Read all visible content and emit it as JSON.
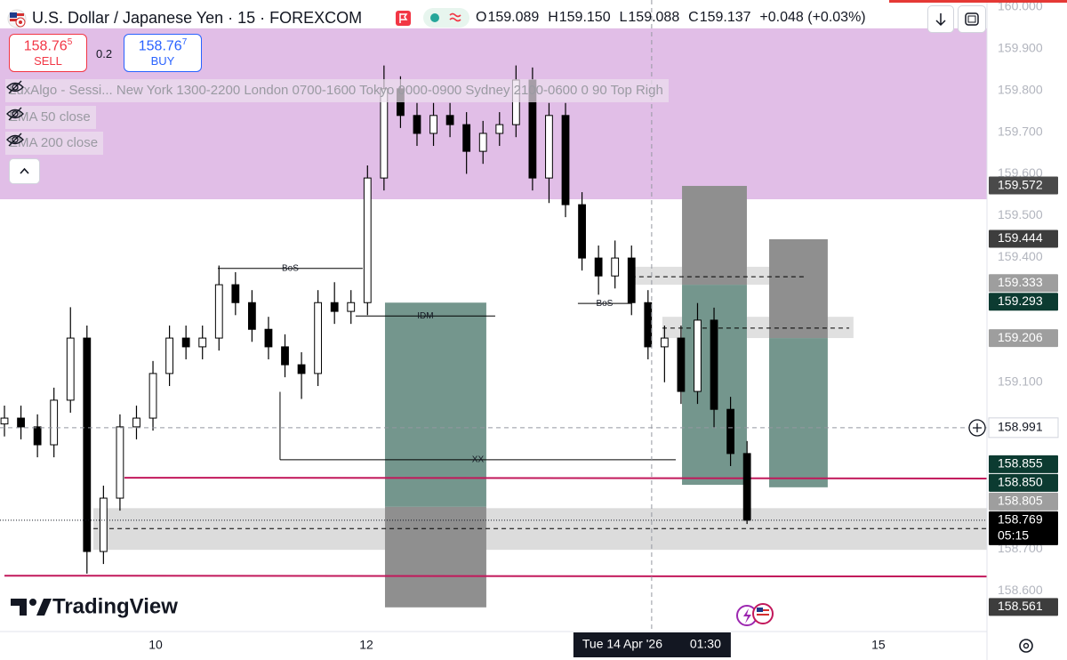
{
  "header": {
    "title": "U.S. Dollar / Japanese Yen · 15 · FOREXCOM",
    "ohlc": [
      [
        "O",
        "159.089"
      ],
      [
        "H",
        "159.150"
      ],
      [
        "L",
        "159.088"
      ],
      [
        "C",
        "159.137"
      ]
    ],
    "change": "+0.048 (+0.03%)"
  },
  "order_panel": {
    "sell": {
      "price": "158.76",
      "pip": "5",
      "label": "SELL"
    },
    "spread": "0.2",
    "buy": {
      "price": "158.76",
      "pip": "7",
      "label": "BUY"
    }
  },
  "indicators": [
    "LuxAlgo - Sessi...  New York 1300-2200 London 0700-1600 Tokyo 0000-0900 Sydney 2100-0600 0 90 Top Righ",
    "EMA 50 close",
    "EMA 200 close"
  ],
  "brand": "TradingView",
  "chart_data": {
    "type": "candlestick",
    "x": [
      0,
      1,
      2,
      3,
      4,
      5,
      6,
      7,
      8,
      9,
      10,
      11,
      12,
      13,
      14,
      15,
      16,
      17,
      18,
      19,
      20,
      21,
      22,
      23,
      24,
      25,
      26,
      27,
      28,
      29,
      30,
      31,
      32,
      33,
      34,
      35,
      36,
      37,
      38,
      39,
      40,
      41,
      42,
      43,
      44,
      45
    ],
    "open": [
      159.0,
      159.014,
      158.993,
      158.95,
      159.057,
      159.206,
      158.694,
      158.822,
      158.993,
      159.014,
      159.121,
      159.206,
      159.185,
      159.206,
      159.334,
      159.291,
      159.227,
      159.185,
      159.142,
      159.121,
      159.291,
      159.27,
      159.291,
      159.59,
      159.804,
      159.74,
      159.697,
      159.74,
      159.718,
      159.654,
      159.697,
      159.718,
      159.825,
      159.59,
      159.74,
      159.526,
      159.398,
      159.355,
      159.398,
      159.291,
      159.185,
      159.206,
      159.078,
      159.249,
      159.035,
      158.929
    ],
    "high": [
      159.044,
      159.044,
      159.023,
      159.087,
      159.28,
      159.236,
      158.852,
      159.023,
      159.044,
      159.151,
      159.236,
      159.236,
      159.236,
      159.38,
      159.364,
      159.321,
      159.257,
      159.215,
      159.172,
      159.321,
      159.34,
      159.321,
      159.62,
      159.86,
      159.834,
      159.77,
      159.77,
      159.77,
      159.748,
      159.727,
      159.748,
      159.86,
      159.855,
      159.77,
      159.77,
      159.556,
      159.428,
      159.44,
      159.428,
      159.321,
      159.236,
      159.236,
      159.29,
      159.279,
      159.065,
      158.959
    ],
    "low": [
      158.97,
      158.963,
      158.92,
      158.92,
      159.027,
      158.641,
      158.664,
      158.792,
      158.963,
      158.984,
      159.091,
      159.155,
      159.155,
      159.176,
      159.261,
      159.197,
      159.155,
      159.112,
      159.06,
      159.091,
      159.24,
      159.24,
      159.261,
      159.56,
      159.71,
      159.667,
      159.667,
      159.688,
      159.6,
      159.624,
      159.667,
      159.688,
      159.56,
      159.53,
      159.496,
      159.368,
      159.31,
      159.325,
      159.261,
      159.155,
      159.1,
      159.048,
      159.048,
      158.99,
      158.899,
      158.76
    ],
    "close": [
      159.014,
      158.993,
      158.95,
      159.057,
      159.206,
      158.694,
      158.822,
      158.993,
      159.014,
      159.121,
      159.206,
      159.185,
      159.206,
      159.334,
      159.291,
      159.227,
      159.185,
      159.142,
      159.121,
      159.291,
      159.27,
      159.291,
      159.59,
      159.804,
      159.74,
      159.697,
      159.74,
      159.718,
      159.654,
      159.697,
      159.718,
      159.825,
      159.59,
      159.74,
      159.526,
      159.398,
      159.355,
      159.398,
      159.291,
      159.185,
      159.206,
      159.078,
      159.249,
      159.035,
      158.929,
      158.769
    ],
    "up_color": "#ffffff",
    "down_color": "#000000",
    "wick_color": "#000000",
    "xlim": [
      -0.27,
      59.54
    ],
    "ylim": [
      158.502,
      160.017
    ],
    "xticks": [
      {
        "value": 9.16,
        "label": "10"
      },
      {
        "value": 21.93,
        "label": "12"
      },
      {
        "value": 52.96,
        "label": "15"
      }
    ],
    "yticks": [
      {
        "value": 160.0,
        "label": "160.000"
      },
      {
        "value": 159.9,
        "label": "159.900"
      },
      {
        "value": 159.8,
        "label": "159.800"
      },
      {
        "value": 159.7,
        "label": "159.700"
      },
      {
        "value": 159.6,
        "label": "159.600"
      },
      {
        "value": 159.5,
        "label": "159.500"
      },
      {
        "value": 159.4,
        "label": "159.400"
      },
      {
        "value": 159.3,
        "label": "159.300"
      },
      {
        "value": 159.2,
        "label": "159.200"
      },
      {
        "value": 159.1,
        "label": "159.100"
      },
      {
        "value": 159.0,
        "label": "159.000"
      },
      {
        "value": 158.9,
        "label": "158.900"
      },
      {
        "value": 158.8,
        "label": "158.800"
      },
      {
        "value": 158.7,
        "label": "158.700"
      },
      {
        "value": 158.6,
        "label": "158.600"
      }
    ],
    "session_band": {
      "ylo": 159.539,
      "yhi": 159.949,
      "color": "#e1bee7"
    },
    "zones": [
      {
        "x0": 5.39,
        "x1": 59.54,
        "ylo": 158.698,
        "yhi": 158.798,
        "color": "#dcdcdc"
      },
      {
        "x0": 37.82,
        "x1": 48.6,
        "ylo": 159.334,
        "yhi": 159.377,
        "color": "#e0e0e0"
      },
      {
        "x0": 39.87,
        "x1": 51.45,
        "ylo": 159.206,
        "yhi": 159.257,
        "color": "#e0e0e0"
      },
      {
        "x0": 23.06,
        "x1": 29.2,
        "ylo": 158.801,
        "yhi": 159.291,
        "color": "#74968d"
      },
      {
        "x0": 23.06,
        "x1": 29.2,
        "ylo": 158.56,
        "yhi": 158.801,
        "color": "#8f8f8f"
      },
      {
        "x0": 41.06,
        "x1": 44.99,
        "ylo": 159.334,
        "yhi": 159.571,
        "color": "#8f8f8f"
      },
      {
        "x0": 41.06,
        "x1": 44.99,
        "ylo": 158.854,
        "yhi": 159.334,
        "color": "#74968d"
      },
      {
        "x0": 46.34,
        "x1": 49.89,
        "ylo": 159.206,
        "yhi": 159.443,
        "color": "#8f8f8f"
      },
      {
        "x0": 46.34,
        "x1": 49.89,
        "ylo": 158.848,
        "yhi": 159.206,
        "color": "#74968d"
      }
    ],
    "lines": [
      {
        "x0": 7.27,
        "x1": 59.54,
        "y0": 158.871,
        "y1": 158.869,
        "color": "#c2185b",
        "dash": false
      },
      {
        "x0": 0,
        "x1": 59.54,
        "y0": 158.636,
        "y1": 158.634,
        "color": "#c2185b",
        "dash": false
      },
      {
        "x0": 37.98,
        "x1": 48.49,
        "y0": 159.353,
        "y1": 159.353,
        "color": "#000000",
        "dash": true
      },
      {
        "x0": 39.87,
        "x1": 51.19,
        "y0": 159.23,
        "y1": 159.23,
        "color": "#000000",
        "dash": true
      },
      {
        "x0": 5.39,
        "x1": 59.54,
        "y0": 158.749,
        "y1": 158.749,
        "color": "#000000",
        "dash": true
      },
      {
        "x0": 16.7,
        "x1": 16.7,
        "y0": 159.077,
        "y1": 158.914,
        "color": "#000000",
        "dash": false
      }
    ],
    "structure": [
      {
        "text": "BoS",
        "x0": 12.93,
        "x1": 21.71,
        "y": 159.373
      },
      {
        "text": "IDM",
        "x0": 21.28,
        "x1": 29.74,
        "y": 159.259
      },
      {
        "text": "XX",
        "x0": 16.7,
        "x1": 40.68,
        "y": 158.914
      },
      {
        "text": "BoS",
        "x0": 34.75,
        "x1": 37.98,
        "y": 159.289
      }
    ],
    "price_labels": [
      {
        "value": 159.572,
        "bg": "#4a4a4a",
        "fg": "#ffffff"
      },
      {
        "value": 159.444,
        "bg": "#3d3d3d",
        "fg": "#ffffff"
      },
      {
        "value": 159.333,
        "bg": "#9e9e9e",
        "fg": "#ffffff"
      },
      {
        "value": 159.293,
        "bg": "#0c3b31",
        "fg": "#ffffff"
      },
      {
        "value": 159.206,
        "bg": "#9e9e9e",
        "fg": "#ffffff"
      },
      {
        "value": 158.855,
        "bg": "#0c3b31",
        "fg": "#ffffff"
      },
      {
        "value": 158.85,
        "label": "158.850",
        "bg": "#0c3b31",
        "fg": "#ffffff"
      },
      {
        "value": 158.805,
        "bg": "#9e9e9e",
        "fg": "#ffffff"
      },
      {
        "value": 158.769,
        "bg": "#000000",
        "fg": "#ffffff",
        "countdown": "05:15"
      },
      {
        "value": 158.561,
        "bg": "#3d3d3d",
        "fg": "#ffffff"
      }
    ],
    "crosshair": {
      "x": 39.22,
      "y": 158.991,
      "date_label": "Tue 14 Apr '26",
      "time_label": "01:30"
    }
  }
}
